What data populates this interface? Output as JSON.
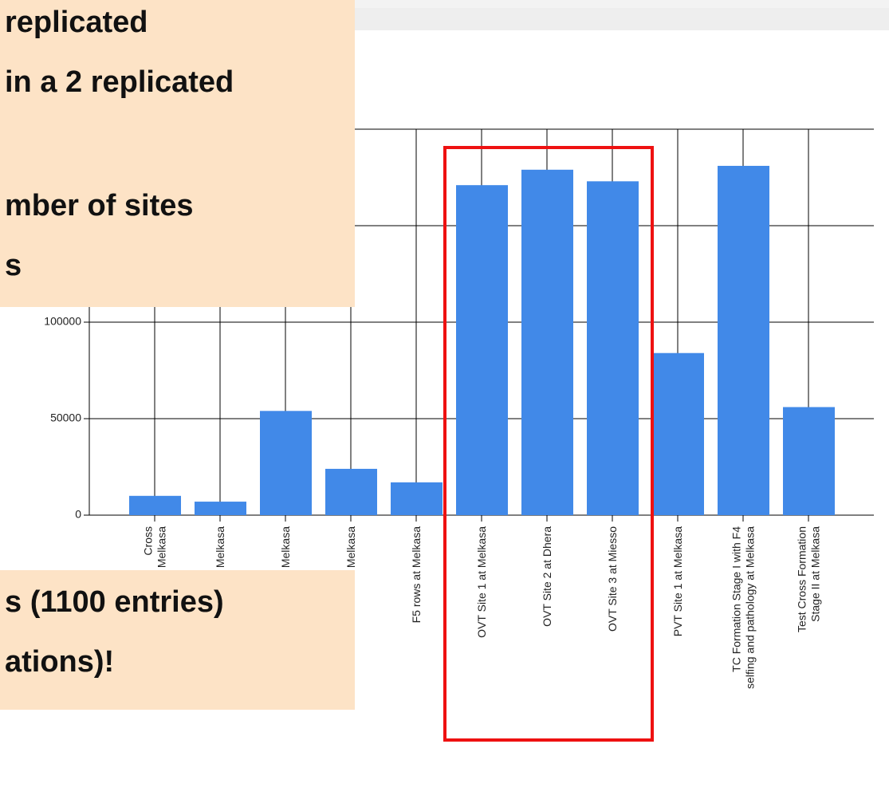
{
  "chart_data": {
    "type": "bar",
    "categories": [
      "Cross\nat Melkasa",
      "at Melkasa",
      "at Melkasa",
      "at Melkasa",
      "F5 rows at Melkasa",
      "OVT Site 1 at Melkasa",
      "OVT Site 2 at Dhera",
      "OVT Site 3 at Miesso",
      "PVT Site 1 at Melkasa",
      "TC Formation Stage I with F4\nselfing and pathology at Melkasa",
      "Test Cross Formation\nStage II at Melkasa"
    ],
    "values": [
      10000,
      7000,
      54000,
      24000,
      17000,
      171000,
      179000,
      173000,
      84000,
      181000,
      56000
    ],
    "color": "#4189e8",
    "ylim": [
      0,
      200000
    ],
    "yticks": [
      0,
      50000,
      100000,
      150000,
      200000
    ],
    "grid": true
  },
  "callouts": [
    {
      "lines": [
        "replicated",
        "in a 2 replicated",
        "mber of sites",
        "s"
      ]
    },
    {
      "lines": [
        "s (1100 entries)",
        "ations)!"
      ]
    }
  ]
}
